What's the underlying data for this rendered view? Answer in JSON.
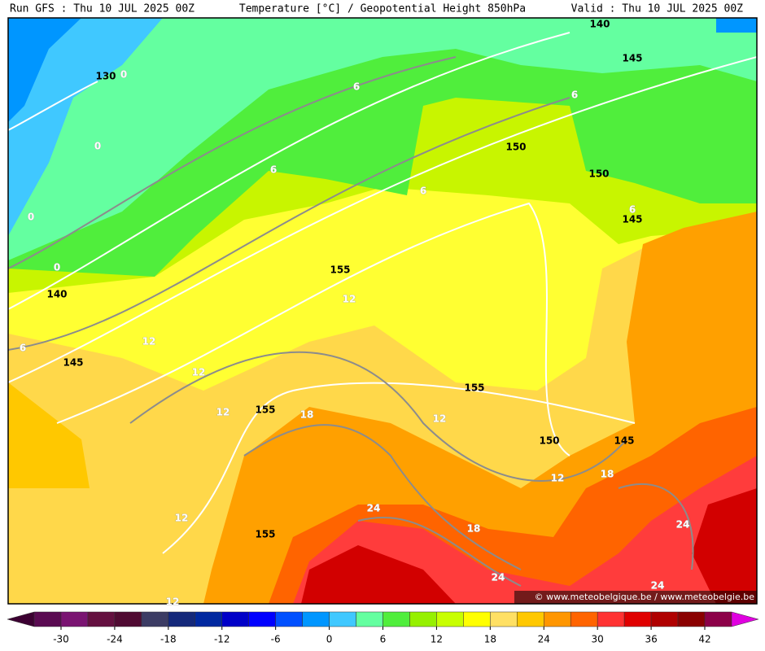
{
  "header": {
    "run": "Run GFS : Thu 10 JUL 2025 00Z",
    "title": "Temperature [°C] / Geopotential Height 850hPa",
    "valid": "Valid : Thu 10 JUL 2025 00Z"
  },
  "map": {
    "height_labels": [
      "140",
      "145",
      "130",
      "150",
      "150",
      "145",
      "155",
      "140",
      "145",
      "155",
      "155",
      "150",
      "145",
      "155"
    ],
    "temperature_labels": [
      "0",
      "6",
      "6",
      "0",
      "6",
      "6",
      "0",
      "6",
      "0",
      "12",
      "6",
      "12",
      "12",
      "12",
      "18",
      "12",
      "12",
      "18",
      "24",
      "12",
      "24",
      "18",
      "24",
      "24",
      "12"
    ]
  },
  "credit": "© www.meteobelgique.be / www.meteobelgie.be",
  "colorbar": {
    "ticks": [
      -30,
      -24,
      -18,
      -12,
      -6,
      0,
      6,
      12,
      18,
      24,
      30,
      36,
      42
    ],
    "colors": [
      "#3c0032",
      "#5a0a52",
      "#7a1472",
      "#641040",
      "#500a32",
      "#3c3c64",
      "#14287a",
      "#0028a0",
      "#0000c8",
      "#0000ff",
      "#0050ff",
      "#0096ff",
      "#40c8ff",
      "#64ffa0",
      "#50ee3c",
      "#96f000",
      "#c8ff00",
      "#ffff00",
      "#ffe064",
      "#ffc800",
      "#ff9600",
      "#ff6400",
      "#ff3232",
      "#e00000",
      "#b00000",
      "#8a0000",
      "#8c0048",
      "#e000e0"
    ]
  }
}
